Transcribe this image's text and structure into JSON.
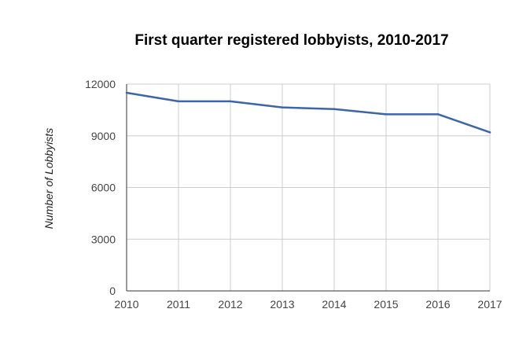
{
  "chart_data": {
    "type": "line",
    "title": "First quarter registered lobbyists, 2010-2017",
    "xlabel": "",
    "ylabel": "Number of Lobbyists",
    "x": [
      "2010",
      "2011",
      "2012",
      "2013",
      "2014",
      "2015",
      "2016",
      "2017"
    ],
    "series": [
      {
        "values": [
          11500,
          11000,
          11000,
          10650,
          10550,
          10250,
          10250,
          9200
        ]
      }
    ],
    "ylim": [
      0,
      12000
    ],
    "yticks": [
      0,
      3000,
      6000,
      9000,
      12000
    ],
    "grid": true,
    "line_color": "#3d66a8"
  }
}
